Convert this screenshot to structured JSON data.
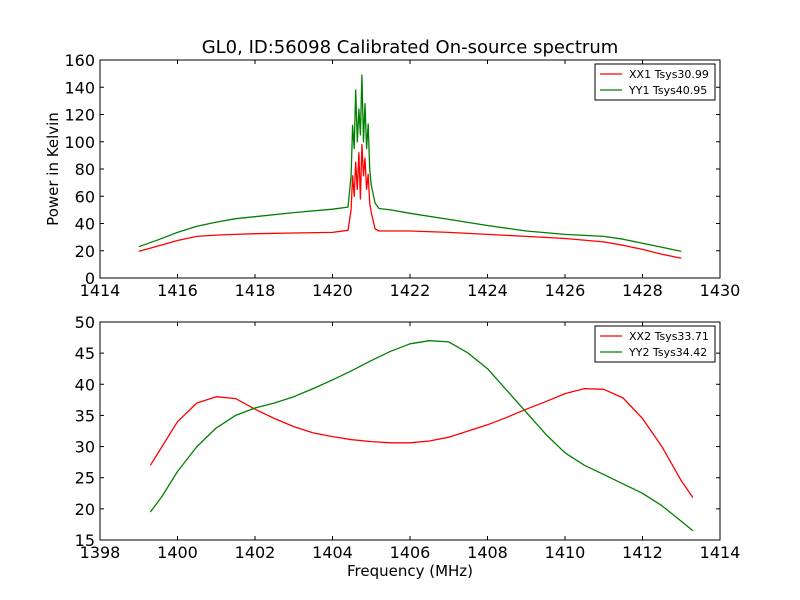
{
  "chart_data": [
    {
      "type": "line",
      "title": "GL0, ID:56098 Calibrated On-source spectrum",
      "xlabel": "",
      "ylabel": "Power in Kelvin",
      "xlim": [
        1414,
        1430
      ],
      "ylim": [
        0,
        160
      ],
      "xticks": [
        1414,
        1416,
        1418,
        1420,
        1422,
        1424,
        1426,
        1428,
        1430
      ],
      "yticks": [
        0,
        20,
        40,
        60,
        80,
        100,
        120,
        140,
        160
      ],
      "grid": false,
      "legend": "top-right",
      "series": [
        {
          "name": "XX1 Tsys30.99",
          "color": "#ff0000",
          "x": [
            1415.0,
            1415.5,
            1416.0,
            1416.5,
            1417.0,
            1417.5,
            1418.0,
            1419.0,
            1420.0,
            1420.4,
            1420.48,
            1420.52,
            1420.56,
            1420.6,
            1420.64,
            1420.68,
            1420.72,
            1420.76,
            1420.8,
            1420.84,
            1420.88,
            1420.92,
            1420.96,
            1421.0,
            1421.1,
            1421.2,
            1421.5,
            1422.0,
            1423.0,
            1424.0,
            1425.0,
            1426.0,
            1427.0,
            1427.5,
            1428.0,
            1428.5,
            1429.0
          ],
          "y": [
            19.5,
            23.5,
            27.5,
            30.5,
            31.5,
            32.0,
            32.5,
            33.0,
            33.5,
            35.0,
            50.0,
            75.0,
            60.0,
            85.0,
            65.0,
            92.0,
            58.0,
            98.0,
            75.0,
            88.0,
            65.0,
            76.0,
            55.0,
            48.0,
            36.0,
            34.5,
            34.5,
            34.5,
            33.5,
            32.0,
            30.5,
            29.0,
            26.5,
            24.0,
            21.0,
            17.5,
            14.5
          ]
        },
        {
          "name": "YY1 Tsys40.95",
          "color": "#008000",
          "x": [
            1415.0,
            1415.5,
            1416.0,
            1416.5,
            1417.0,
            1417.5,
            1418.0,
            1419.0,
            1420.0,
            1420.4,
            1420.48,
            1420.52,
            1420.56,
            1420.6,
            1420.64,
            1420.68,
            1420.72,
            1420.76,
            1420.8,
            1420.84,
            1420.88,
            1420.92,
            1420.96,
            1421.0,
            1421.1,
            1421.2,
            1421.5,
            1422.0,
            1423.0,
            1424.0,
            1425.0,
            1426.0,
            1427.0,
            1427.5,
            1428.0,
            1428.5,
            1429.0
          ],
          "y": [
            23.0,
            28.0,
            33.5,
            38.0,
            41.0,
            43.5,
            45.0,
            48.0,
            50.5,
            52.0,
            75.0,
            112.0,
            95.0,
            138.0,
            100.0,
            124.0,
            105.0,
            149.0,
            100.0,
            128.0,
            95.0,
            113.0,
            80.0,
            68.0,
            55.0,
            51.0,
            50.0,
            47.5,
            43.0,
            38.5,
            34.5,
            32.0,
            30.5,
            28.5,
            25.5,
            22.5,
            19.5
          ]
        }
      ]
    },
    {
      "type": "line",
      "title": "",
      "xlabel": "Frequency (MHz)",
      "ylabel": "",
      "xlim": [
        1398,
        1414
      ],
      "ylim": [
        15,
        50
      ],
      "xticks": [
        1398,
        1400,
        1402,
        1404,
        1406,
        1408,
        1410,
        1412,
        1414
      ],
      "yticks": [
        15,
        20,
        25,
        30,
        35,
        40,
        45,
        50
      ],
      "grid": false,
      "legend": "top-right",
      "series": [
        {
          "name": "XX2 Tsys33.71",
          "color": "#ff0000",
          "x": [
            1399.3,
            1399.6,
            1400.0,
            1400.5,
            1401.0,
            1401.5,
            1402.0,
            1402.5,
            1403.0,
            1403.5,
            1404.0,
            1404.5,
            1405.0,
            1405.5,
            1406.0,
            1406.5,
            1407.0,
            1407.5,
            1408.0,
            1408.5,
            1409.0,
            1409.5,
            1410.0,
            1410.5,
            1411.0,
            1411.5,
            1412.0,
            1412.5,
            1413.0,
            1413.3
          ],
          "y": [
            27.0,
            30.0,
            34.0,
            37.0,
            38.0,
            37.7,
            36.0,
            34.5,
            33.2,
            32.2,
            31.6,
            31.1,
            30.8,
            30.6,
            30.6,
            30.9,
            31.5,
            32.5,
            33.5,
            34.7,
            36.0,
            37.2,
            38.5,
            39.3,
            39.2,
            37.8,
            34.5,
            30.0,
            24.5,
            21.8
          ]
        },
        {
          "name": "YY2 Tsys34.42",
          "color": "#008000",
          "x": [
            1399.3,
            1399.6,
            1400.0,
            1400.5,
            1401.0,
            1401.5,
            1402.0,
            1402.5,
            1403.0,
            1403.5,
            1404.0,
            1404.5,
            1405.0,
            1405.5,
            1406.0,
            1406.5,
            1407.0,
            1407.5,
            1408.0,
            1408.5,
            1409.0,
            1409.5,
            1410.0,
            1410.5,
            1411.0,
            1411.5,
            1412.0,
            1412.5,
            1413.0,
            1413.3
          ],
          "y": [
            19.5,
            22.0,
            26.0,
            30.0,
            33.0,
            35.0,
            36.2,
            37.0,
            38.0,
            39.3,
            40.7,
            42.2,
            43.8,
            45.3,
            46.5,
            47.0,
            46.8,
            45.0,
            42.5,
            39.0,
            35.5,
            32.0,
            29.0,
            27.0,
            25.5,
            24.0,
            22.5,
            20.5,
            18.0,
            16.5
          ]
        }
      ]
    }
  ]
}
